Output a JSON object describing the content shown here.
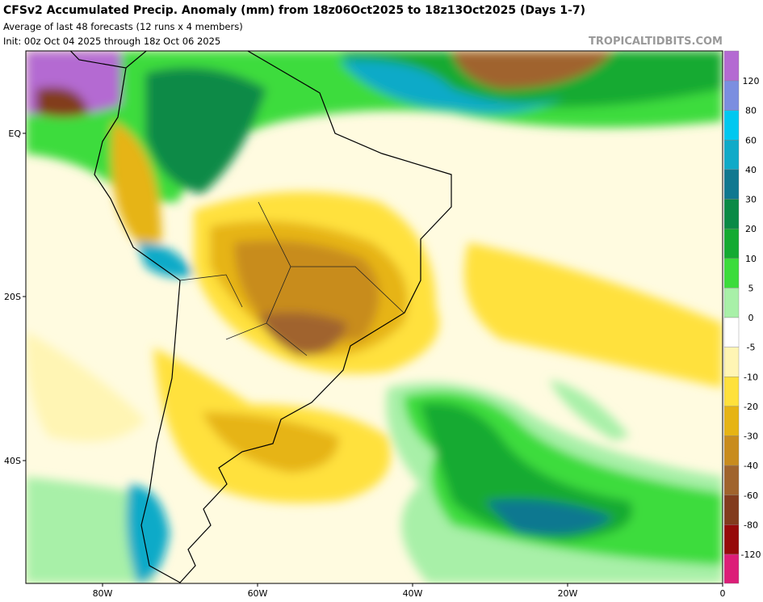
{
  "header": {
    "title": "CFSv2 Accumulated Precip. Anomaly (mm) from 18z06Oct2025 to 18z13Oct2025 (Days 1-7)",
    "subtitle": "Average of last 48 forecasts (12 runs x 4 members)",
    "init": "Init: 00z Oct 04 2025 through 18z Oct 06 2025",
    "watermark": "TROPICALTIDBITS.COM"
  },
  "map": {
    "lat_labels": [
      "EQ",
      "20S",
      "40S"
    ],
    "lon_labels": [
      "80W",
      "60W",
      "40W",
      "20W",
      "0"
    ]
  },
  "colorbar": {
    "labels": [
      120,
      80,
      60,
      40,
      30,
      20,
      10,
      5,
      0,
      -5,
      -10,
      -20,
      -30,
      -40,
      -60,
      -80,
      -120
    ],
    "colors": [
      "#b46ad2",
      "#7b8ee0",
      "#00c8f0",
      "#10aac8",
      "#107890",
      "#0a8a46",
      "#14aa32",
      "#3cdc3c",
      "#a8f0a8",
      "#ffffff",
      "#fff5b4",
      "#ffe13c",
      "#e6b414",
      "#c88c1e",
      "#a0642d",
      "#823c1e",
      "#960a0a",
      "#dc1e78"
    ]
  }
}
